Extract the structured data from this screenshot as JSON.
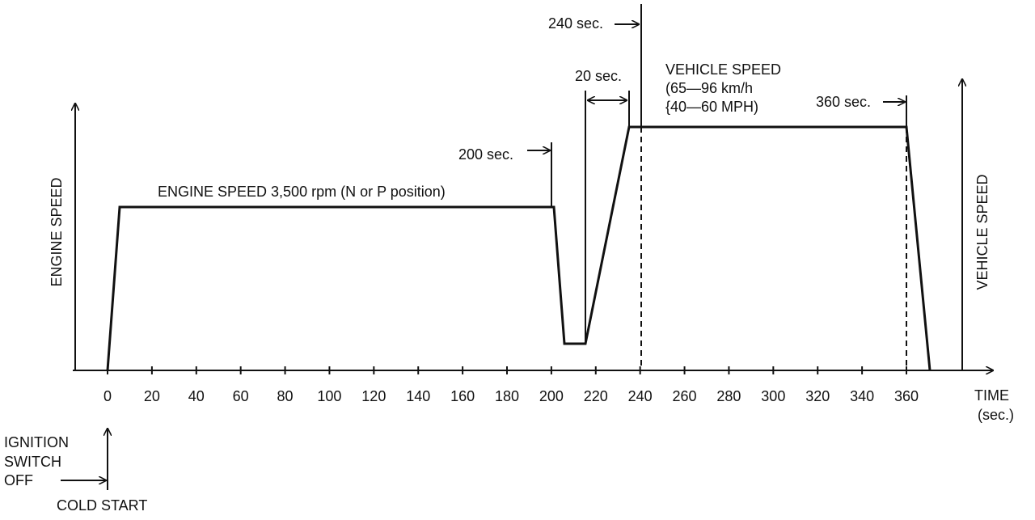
{
  "labels": {
    "t240": "240 sec.",
    "t20": "20 sec.",
    "vehicle_speed_1": "VEHICLE SPEED",
    "vehicle_speed_2": "(65—96 km/h",
    "vehicle_speed_3": "{40—60 MPH)",
    "t360": "360 sec.",
    "t200": "200 sec.",
    "engine_note": "ENGINE SPEED 3,500 rpm (N or P position)",
    "y_left": "ENGINE SPEED",
    "y_right": "VEHICLE SPEED",
    "x_label_1": "TIME",
    "x_label_2": "(sec.)",
    "ignition_1": "IGNITION",
    "ignition_2": "SWITCH",
    "ignition_3": "OFF",
    "cold_start": "COLD START"
  },
  "xticks": [
    0,
    20,
    40,
    60,
    80,
    100,
    120,
    140,
    160,
    180,
    200,
    220,
    240,
    260,
    280,
    300,
    320,
    340,
    360
  ]
}
